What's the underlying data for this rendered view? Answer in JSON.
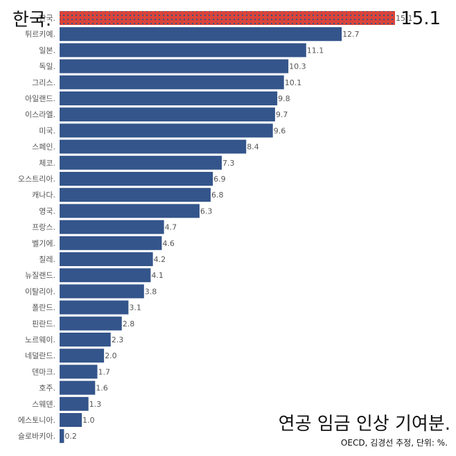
{
  "highlight": {
    "name": "한국.",
    "value": "15.1"
  },
  "title": "연공 임금 인상 기여분.",
  "source": "OECD, 김경선 추정, 단위: %.",
  "colors": {
    "bar": "#34558b",
    "highlight_bar": "#d9453a",
    "text": "#555555"
  },
  "chart_data": {
    "type": "bar",
    "orientation": "horizontal",
    "title": "연공 임금 인상 기여분.",
    "unit": "%",
    "xlim": [
      0,
      15.1
    ],
    "grid": false,
    "legend": "none",
    "highlight_category": "한국.",
    "categories": [
      "한국.",
      "튀르키예.",
      "일본.",
      "독일.",
      "그리스.",
      "아일랜드.",
      "이스라엘.",
      "미국.",
      "스페인.",
      "체코.",
      "오스트리아.",
      "캐나다.",
      "영국.",
      "프랑스.",
      "벨기에.",
      "칠레.",
      "뉴질랜드.",
      "이탈리아.",
      "폴란드.",
      "핀란드.",
      "노르웨이.",
      "네덜란드.",
      "덴마크.",
      "호주.",
      "스웨덴.",
      "에스토니아.",
      "슬로바키아."
    ],
    "values": [
      15.1,
      12.7,
      11.1,
      10.3,
      10.1,
      9.8,
      9.7,
      9.6,
      8.4,
      7.3,
      6.9,
      6.8,
      6.3,
      4.7,
      4.6,
      4.2,
      4.1,
      3.8,
      3.1,
      2.8,
      2.3,
      2.0,
      1.7,
      1.6,
      1.3,
      1.0,
      0.2
    ],
    "value_labels": [
      "15.1",
      "12.7",
      "11.1",
      "10.3",
      "10.1",
      "9.8",
      "9.7",
      "9.6",
      "8.4",
      "7.3",
      "6.9",
      "6.8",
      "6.3",
      "4.7",
      "4.6",
      "4.2",
      "4.1",
      "3.8",
      "3.1",
      "2.8",
      "2.3",
      "2.0",
      "1.7",
      "1.6",
      "1.3",
      "1.0",
      "0.2"
    ]
  }
}
